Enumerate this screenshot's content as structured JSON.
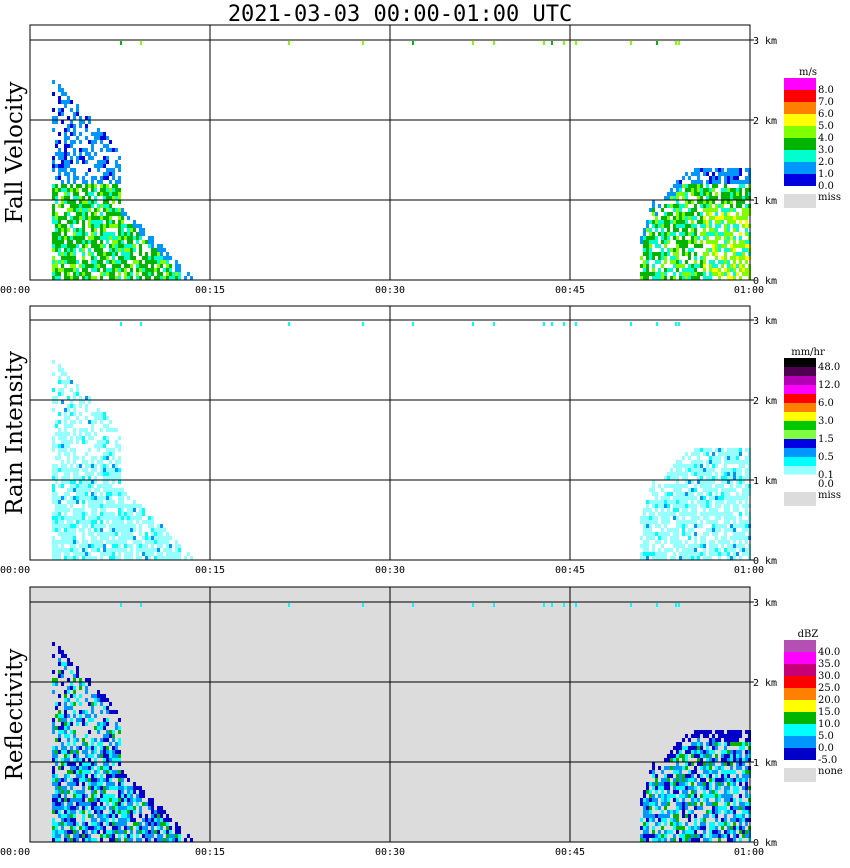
{
  "title": "2021-03-03   00:00-01:00 UTC",
  "x_ticks": [
    "00:00",
    "00:15",
    "00:30",
    "00:45",
    "01:00"
  ],
  "y_ticks": [
    "0 km",
    "1 km",
    "2 km",
    "3 km"
  ],
  "chart_data": [
    {
      "type": "heatmap",
      "ylabel": "Fall Velocity",
      "x_range": [
        "00:00",
        "01:00"
      ],
      "y_range_km": [
        0,
        3.2
      ],
      "grid": true,
      "background": "#ffffff",
      "colorbar": {
        "unit": "m/s",
        "levels": [
          {
            "label": "8.0",
            "color": "#ff00ff"
          },
          {
            "label": "7.0",
            "color": "#ff0000"
          },
          {
            "label": "6.0",
            "color": "#ff8000"
          },
          {
            "label": "5.0",
            "color": "#ffff00"
          },
          {
            "label": "4.0",
            "color": "#80ff00"
          },
          {
            "label": "3.0",
            "color": "#00b400"
          },
          {
            "label": "2.0",
            "color": "#00ffcc"
          },
          {
            "label": "1.0",
            "color": "#0096ff"
          },
          {
            "label": "0.0",
            "color": "#0000e0"
          }
        ],
        "miss_label": "miss",
        "miss_color": "#dcdcdc"
      }
    },
    {
      "type": "heatmap",
      "ylabel": "Rain Intensity",
      "x_range": [
        "00:00",
        "01:00"
      ],
      "y_range_km": [
        0,
        3.2
      ],
      "grid": true,
      "background": "#ffffff",
      "colorbar": {
        "unit": "mm/hr",
        "levels": [
          {
            "label": "48.0",
            "color": "#000000"
          },
          {
            "label": "",
            "color": "#500050"
          },
          {
            "label": "12.0",
            "color": "#b400b4"
          },
          {
            "label": "",
            "color": "#ff00ff"
          },
          {
            "label": "6.0",
            "color": "#ff0000"
          },
          {
            "label": "",
            "color": "#ff8000"
          },
          {
            "label": "3.0",
            "color": "#ffff00"
          },
          {
            "label": "",
            "color": "#00c800"
          },
          {
            "label": "1.5",
            "color": "#80ff40"
          },
          {
            "label": "",
            "color": "#0000e0"
          },
          {
            "label": "0.5",
            "color": "#0096ff"
          },
          {
            "label": "",
            "color": "#00ffff"
          },
          {
            "label": "0.1",
            "color": "#96ffff"
          },
          {
            "label": "0.0",
            "color": "#ffffff"
          }
        ],
        "miss_label": "miss",
        "miss_color": "#dcdcdc"
      }
    },
    {
      "type": "heatmap",
      "ylabel": "Reflectivity",
      "x_range": [
        "00:00",
        "01:00"
      ],
      "y_range_km": [
        0,
        3.2
      ],
      "grid": true,
      "background": "#dcdcdc",
      "colorbar": {
        "unit": "dBZ",
        "levels": [
          {
            "label": "40.0",
            "color": "#b450b4"
          },
          {
            "label": "35.0",
            "color": "#ff00ff"
          },
          {
            "label": "30.0",
            "color": "#c80078"
          },
          {
            "label": "25.0",
            "color": "#ff0000"
          },
          {
            "label": "20.0",
            "color": "#ff8000"
          },
          {
            "label": "15.0",
            "color": "#ffff00"
          },
          {
            "label": "10.0",
            "color": "#00b400"
          },
          {
            "label": "5.0",
            "color": "#00ffff"
          },
          {
            "label": "0.0",
            "color": "#0096ff"
          },
          {
            "label": "-5.0",
            "color": "#0000c8"
          }
        ],
        "miss_label": "none",
        "miss_color": "#dcdcdc"
      }
    }
  ]
}
